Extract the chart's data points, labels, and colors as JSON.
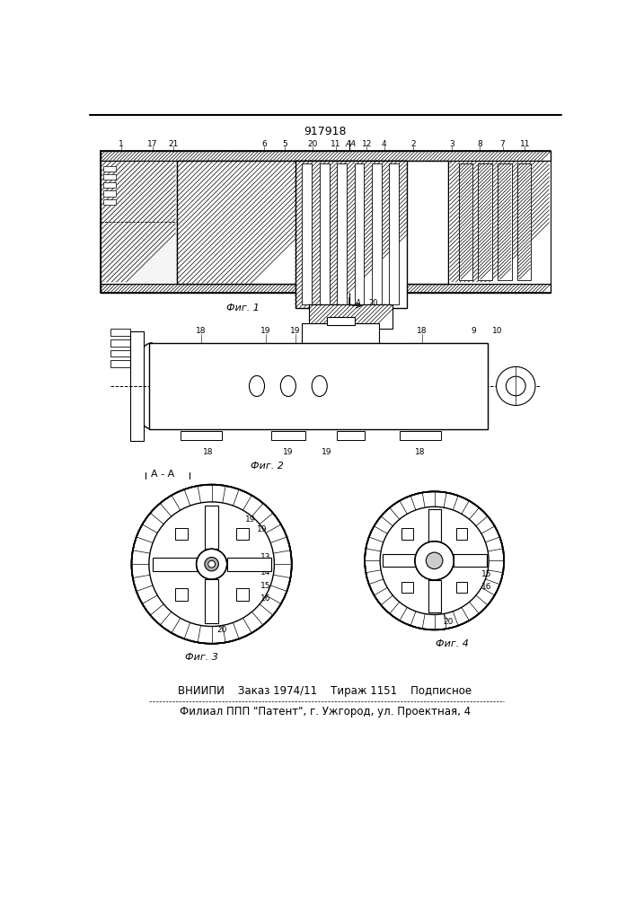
{
  "patent_number": "917918",
  "fig1_caption": "Фиг. 1",
  "fig2_caption": "Фиг. 2",
  "fig3_caption": "Фиг. 3",
  "fig4_caption": "Фиг. 4",
  "section_label": "А - А",
  "footer_line1": "ВНИИПИ    Заказ 1974/11    Тираж 1151    Подписное",
  "footer_line2": "Филиал ППП \"Патент\", г. Ужгород, ул. Проектная, 4",
  "bg_color": "#ffffff"
}
